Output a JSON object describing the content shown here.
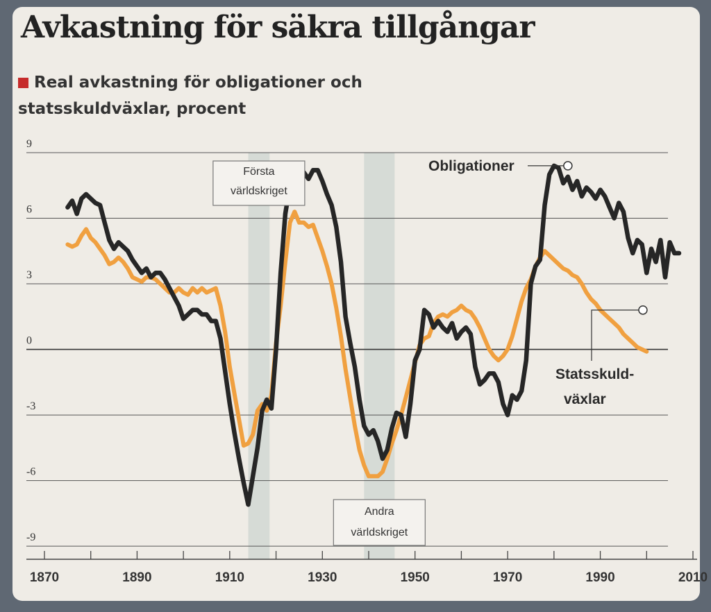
{
  "title": "Avkastning för säkra tillgångar",
  "subtitle": "Real avkastning för obligationer och statsskuldväxlar, procent",
  "colors": {
    "legend_marker": "#c62b2b",
    "obligationer": "#262626",
    "statsskuldvaxlar": "#f0a040",
    "war_band": "#cdd6d0",
    "gridline": "#555555"
  },
  "chart_data": {
    "type": "line",
    "title": "Avkastning för säkra tillgångar",
    "subtitle": "Real avkastning för obligationer och statsskuldväxlar, procent",
    "xlabel": "",
    "ylabel": "",
    "xlim": [
      1866,
      2012
    ],
    "ylim": [
      -9.6,
      9
    ],
    "x_ticks": [
      1870,
      1890,
      1910,
      1930,
      1950,
      1970,
      1990,
      2010
    ],
    "y_ticks": [
      9,
      6,
      3,
      0,
      -3,
      -6,
      -9
    ],
    "y_tick_labels": [
      "9",
      "6",
      "3",
      "0",
      "-3",
      "-6",
      "-9"
    ],
    "grid": true,
    "legend": "direct labels",
    "shaded_periods": [
      {
        "label": "Första världskriget",
        "from": 1914,
        "to": 1918
      },
      {
        "label": "Andra världskriget",
        "from": 1939,
        "to": 1945
      }
    ],
    "series": [
      {
        "name": "Obligationer",
        "label_text": "Obligationer",
        "label_x": 1999,
        "points": [
          [
            1875,
            6.5
          ],
          [
            1876,
            6.8
          ],
          [
            1877,
            6.2
          ],
          [
            1878,
            6.9
          ],
          [
            1879,
            7.1
          ],
          [
            1880,
            6.9
          ],
          [
            1881,
            6.7
          ],
          [
            1882,
            6.6
          ],
          [
            1883,
            5.8
          ],
          [
            1884,
            5.0
          ],
          [
            1885,
            4.6
          ],
          [
            1886,
            4.9
          ],
          [
            1887,
            4.7
          ],
          [
            1888,
            4.5
          ],
          [
            1889,
            4.1
          ],
          [
            1890,
            3.8
          ],
          [
            1891,
            3.5
          ],
          [
            1892,
            3.7
          ],
          [
            1893,
            3.3
          ],
          [
            1894,
            3.5
          ],
          [
            1895,
            3.5
          ],
          [
            1896,
            3.2
          ],
          [
            1897,
            2.8
          ],
          [
            1898,
            2.4
          ],
          [
            1899,
            2.0
          ],
          [
            1900,
            1.4
          ],
          [
            1901,
            1.6
          ],
          [
            1902,
            1.8
          ],
          [
            1903,
            1.8
          ],
          [
            1904,
            1.6
          ],
          [
            1905,
            1.6
          ],
          [
            1906,
            1.3
          ],
          [
            1907,
            1.3
          ],
          [
            1908,
            0.5
          ],
          [
            1909,
            -1.0
          ],
          [
            1910,
            -2.5
          ],
          [
            1911,
            -3.8
          ],
          [
            1912,
            -5.0
          ],
          [
            1913,
            -6.1
          ],
          [
            1914,
            -7.1
          ],
          [
            1915,
            -5.8
          ],
          [
            1916,
            -4.5
          ],
          [
            1917,
            -2.8
          ],
          [
            1918,
            -2.3
          ],
          [
            1919,
            -2.7
          ],
          [
            1920,
            0.0
          ],
          [
            1921,
            3.5
          ],
          [
            1922,
            6.2
          ],
          [
            1923,
            7.5
          ],
          [
            1924,
            7.9
          ],
          [
            1925,
            7.7
          ],
          [
            1926,
            8.1
          ],
          [
            1927,
            7.8
          ],
          [
            1928,
            8.2
          ],
          [
            1929,
            8.2
          ],
          [
            1930,
            7.7
          ],
          [
            1931,
            7.1
          ],
          [
            1932,
            6.6
          ],
          [
            1933,
            5.6
          ],
          [
            1934,
            4.0
          ],
          [
            1935,
            1.5
          ],
          [
            1936,
            0.3
          ],
          [
            1937,
            -0.8
          ],
          [
            1938,
            -2.3
          ],
          [
            1939,
            -3.5
          ],
          [
            1940,
            -3.9
          ],
          [
            1941,
            -3.7
          ],
          [
            1942,
            -4.2
          ],
          [
            1943,
            -5.0
          ],
          [
            1944,
            -4.6
          ],
          [
            1945,
            -3.6
          ],
          [
            1946,
            -2.9
          ],
          [
            1947,
            -3.0
          ],
          [
            1948,
            -4.0
          ],
          [
            1949,
            -2.5
          ],
          [
            1950,
            -0.5
          ],
          [
            1951,
            0.0
          ],
          [
            1952,
            1.8
          ],
          [
            1953,
            1.6
          ],
          [
            1954,
            1.0
          ],
          [
            1955,
            1.3
          ],
          [
            1956,
            1.0
          ],
          [
            1957,
            0.8
          ],
          [
            1958,
            1.2
          ],
          [
            1959,
            0.5
          ],
          [
            1960,
            0.8
          ],
          [
            1961,
            1.0
          ],
          [
            1962,
            0.7
          ],
          [
            1963,
            -0.8
          ],
          [
            1964,
            -1.6
          ],
          [
            1965,
            -1.4
          ],
          [
            1966,
            -1.1
          ],
          [
            1967,
            -1.1
          ],
          [
            1968,
            -1.5
          ],
          [
            1969,
            -2.5
          ],
          [
            1970,
            -3.0
          ],
          [
            1971,
            -2.1
          ],
          [
            1972,
            -2.3
          ],
          [
            1973,
            -1.9
          ],
          [
            1974,
            -0.5
          ],
          [
            1975,
            3.0
          ],
          [
            1976,
            3.8
          ],
          [
            1977,
            4.1
          ],
          [
            1978,
            6.6
          ],
          [
            1979,
            8.0
          ],
          [
            1980,
            8.4
          ],
          [
            1981,
            8.3
          ],
          [
            1982,
            7.6
          ],
          [
            1983,
            7.9
          ],
          [
            1984,
            7.3
          ],
          [
            1985,
            7.7
          ],
          [
            1986,
            7.0
          ],
          [
            1987,
            7.4
          ],
          [
            1988,
            7.2
          ],
          [
            1989,
            6.9
          ],
          [
            1990,
            7.3
          ],
          [
            1991,
            7.0
          ],
          [
            1992,
            6.5
          ],
          [
            1993,
            6.0
          ],
          [
            1994,
            6.7
          ],
          [
            1995,
            6.3
          ],
          [
            1996,
            5.1
          ],
          [
            1997,
            4.4
          ],
          [
            1998,
            5.0
          ],
          [
            1999,
            4.8
          ],
          [
            2000,
            3.5
          ],
          [
            2001,
            4.6
          ],
          [
            2002,
            4.0
          ],
          [
            2003,
            5.0
          ],
          [
            2004,
            3.3
          ],
          [
            2005,
            4.9
          ],
          [
            2006,
            4.4
          ],
          [
            2007,
            4.4
          ]
        ]
      },
      {
        "name": "Statsskuldväxlar",
        "label_text": "Statsskuld-växlar",
        "label_x": 2000,
        "points": [
          [
            1875,
            4.8
          ],
          [
            1876,
            4.7
          ],
          [
            1877,
            4.8
          ],
          [
            1878,
            5.2
          ],
          [
            1879,
            5.5
          ],
          [
            1880,
            5.1
          ],
          [
            1881,
            4.9
          ],
          [
            1882,
            4.6
          ],
          [
            1883,
            4.3
          ],
          [
            1884,
            3.9
          ],
          [
            1885,
            4.0
          ],
          [
            1886,
            4.2
          ],
          [
            1887,
            4.0
          ],
          [
            1888,
            3.7
          ],
          [
            1889,
            3.3
          ],
          [
            1890,
            3.2
          ],
          [
            1891,
            3.1
          ],
          [
            1892,
            3.3
          ],
          [
            1893,
            3.3
          ],
          [
            1894,
            3.2
          ],
          [
            1895,
            3.0
          ],
          [
            1896,
            2.8
          ],
          [
            1897,
            2.6
          ],
          [
            1898,
            2.6
          ],
          [
            1899,
            2.8
          ],
          [
            1900,
            2.6
          ],
          [
            1901,
            2.5
          ],
          [
            1902,
            2.8
          ],
          [
            1903,
            2.6
          ],
          [
            1904,
            2.8
          ],
          [
            1905,
            2.6
          ],
          [
            1906,
            2.7
          ],
          [
            1907,
            2.8
          ],
          [
            1908,
            2.0
          ],
          [
            1909,
            0.8
          ],
          [
            1910,
            -0.8
          ],
          [
            1911,
            -2.0
          ],
          [
            1912,
            -3.2
          ],
          [
            1913,
            -4.4
          ],
          [
            1914,
            -4.3
          ],
          [
            1915,
            -3.9
          ],
          [
            1916,
            -2.8
          ],
          [
            1917,
            -2.5
          ],
          [
            1918,
            -2.8
          ],
          [
            1919,
            -2.1
          ],
          [
            1920,
            0.3
          ],
          [
            1921,
            2.0
          ],
          [
            1922,
            4.0
          ],
          [
            1923,
            5.8
          ],
          [
            1924,
            6.3
          ],
          [
            1925,
            5.8
          ],
          [
            1926,
            5.8
          ],
          [
            1927,
            5.6
          ],
          [
            1928,
            5.7
          ],
          [
            1929,
            5.1
          ],
          [
            1930,
            4.5
          ],
          [
            1931,
            3.8
          ],
          [
            1932,
            3.0
          ],
          [
            1933,
            1.9
          ],
          [
            1934,
            0.6
          ],
          [
            1935,
            -0.9
          ],
          [
            1936,
            -2.2
          ],
          [
            1937,
            -3.5
          ],
          [
            1938,
            -4.6
          ],
          [
            1939,
            -5.3
          ],
          [
            1940,
            -5.8
          ],
          [
            1941,
            -5.8
          ],
          [
            1942,
            -5.8
          ],
          [
            1943,
            -5.6
          ],
          [
            1944,
            -5.0
          ],
          [
            1945,
            -4.3
          ],
          [
            1946,
            -3.7
          ],
          [
            1947,
            -3.0
          ],
          [
            1948,
            -2.2
          ],
          [
            1949,
            -1.4
          ],
          [
            1950,
            -0.6
          ],
          [
            1951,
            0.2
          ],
          [
            1952,
            0.5
          ],
          [
            1953,
            0.6
          ],
          [
            1954,
            1.2
          ],
          [
            1955,
            1.5
          ],
          [
            1956,
            1.6
          ],
          [
            1957,
            1.5
          ],
          [
            1958,
            1.7
          ],
          [
            1959,
            1.8
          ],
          [
            1960,
            2.0
          ],
          [
            1961,
            1.8
          ],
          [
            1962,
            1.7
          ],
          [
            1963,
            1.4
          ],
          [
            1964,
            1.0
          ],
          [
            1965,
            0.5
          ],
          [
            1966,
            0.0
          ],
          [
            1967,
            -0.3
          ],
          [
            1968,
            -0.5
          ],
          [
            1969,
            -0.3
          ],
          [
            1970,
            0.0
          ],
          [
            1971,
            0.6
          ],
          [
            1972,
            1.4
          ],
          [
            1973,
            2.2
          ],
          [
            1974,
            2.8
          ],
          [
            1975,
            3.2
          ],
          [
            1976,
            3.8
          ],
          [
            1977,
            4.2
          ],
          [
            1978,
            4.5
          ],
          [
            1979,
            4.3
          ],
          [
            1980,
            4.1
          ],
          [
            1981,
            3.9
          ],
          [
            1982,
            3.7
          ],
          [
            1983,
            3.6
          ],
          [
            1984,
            3.4
          ],
          [
            1985,
            3.3
          ],
          [
            1986,
            3.0
          ],
          [
            1987,
            2.6
          ],
          [
            1988,
            2.3
          ],
          [
            1989,
            2.1
          ],
          [
            1990,
            1.8
          ],
          [
            1991,
            1.6
          ],
          [
            1992,
            1.4
          ],
          [
            1993,
            1.2
          ],
          [
            1994,
            1.0
          ],
          [
            1995,
            0.7
          ],
          [
            1996,
            0.5
          ],
          [
            1997,
            0.3
          ],
          [
            1998,
            0.1
          ],
          [
            1999,
            0.0
          ],
          [
            2000,
            -0.1
          ]
        ]
      }
    ]
  }
}
